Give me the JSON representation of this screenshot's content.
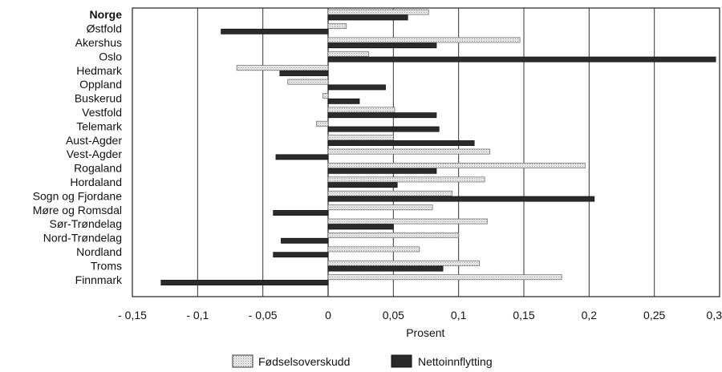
{
  "chart_data": {
    "type": "bar",
    "orientation": "horizontal",
    "categories": [
      "Norge",
      "Østfold",
      "Akershus",
      "Oslo",
      "Hedmark",
      "Oppland",
      "Buskerud",
      "Vestfold",
      "Telemark",
      "Aust-Agder",
      "Vest-Agder",
      "Rogaland",
      "Hordaland",
      "Sogn og Fjordane",
      "Møre og Romsdal",
      "Sør-Trøndelag",
      "Nord-Trøndelag",
      "Nordland",
      "Troms",
      "Finnmark"
    ],
    "bold_categories": [
      "Norge"
    ],
    "series": [
      {
        "name": "Fødselsoverskudd",
        "color": "#e6e6e6",
        "values": [
          0.077,
          0.014,
          0.147,
          0.031,
          -0.07,
          -0.031,
          -0.004,
          0.051,
          -0.009,
          0.05,
          0.124,
          0.197,
          0.12,
          0.095,
          0.08,
          0.122,
          0.1,
          0.07,
          0.116,
          0.179
        ]
      },
      {
        "name": "Nettoinnflytting",
        "color": "#2a2a2a",
        "values": [
          0.061,
          -0.082,
          0.083,
          0.297,
          -0.037,
          0.044,
          0.024,
          0.083,
          0.085,
          0.112,
          -0.04,
          0.083,
          0.053,
          0.204,
          -0.042,
          0.05,
          -0.036,
          -0.042,
          0.088,
          -0.128
        ]
      }
    ],
    "xlabel": "Prosent",
    "ylabel": "",
    "xlim": [
      -0.15,
      0.3
    ],
    "xticks": [
      -0.15,
      -0.1,
      -0.05,
      0,
      0.05,
      0.1,
      0.15,
      0.2,
      0.25,
      0.3
    ],
    "xtick_labels": [
      "- 0,15",
      "- 0,1",
      "- 0,05",
      "0",
      "0,05",
      "0,1",
      "0,15",
      "0,2",
      "0,25",
      "0,3"
    ],
    "grid": "vertical",
    "legend": "bottom"
  }
}
